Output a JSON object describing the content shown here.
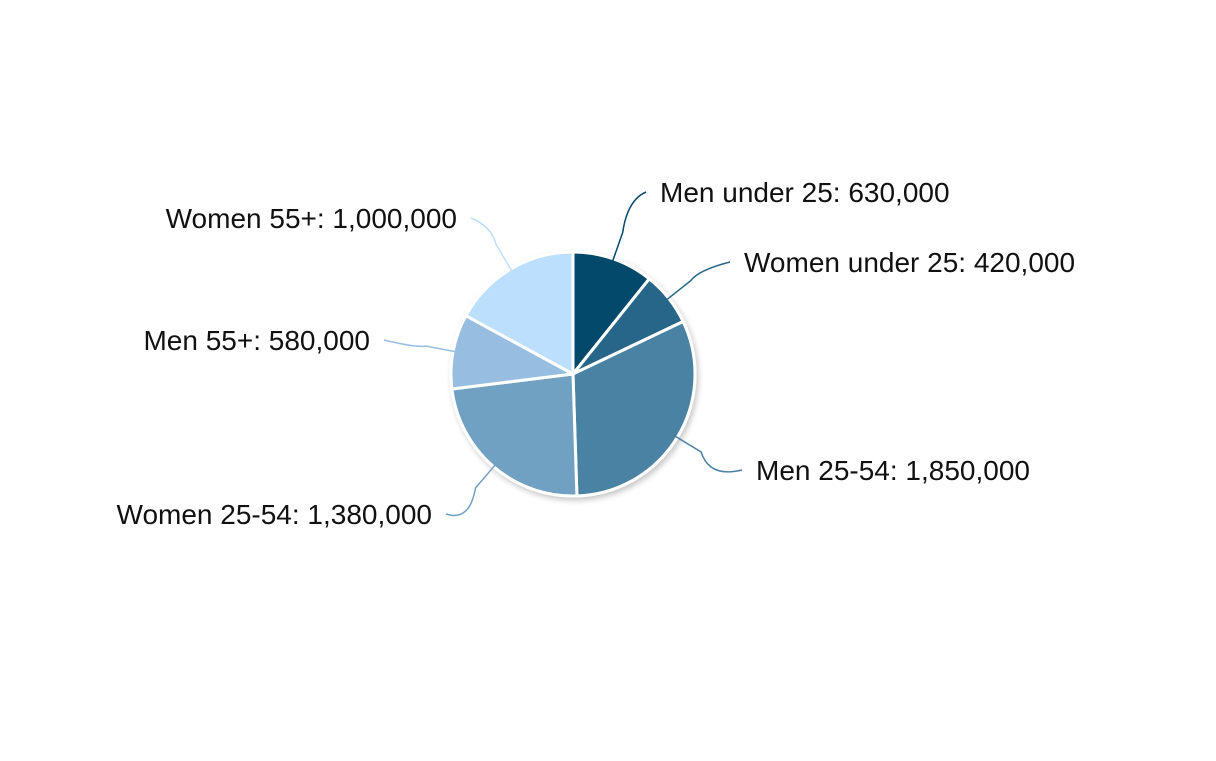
{
  "chart_data": {
    "type": "pie",
    "slices": [
      {
        "label": "Men under 25",
        "value": 630000,
        "display": "Men under 25: 630,000",
        "color": "#02496B"
      },
      {
        "label": "Women under 25",
        "value": 420000,
        "display": "Women under 25: 420,000",
        "color": "#276688"
      },
      {
        "label": "Men 25-54",
        "value": 1850000,
        "display": "Men 25-54: 1,850,000",
        "color": "#4A82A4"
      },
      {
        "label": "Women 25-54",
        "value": 1380000,
        "display": "Women 25-54: 1,380,000",
        "color": "#71A1C2"
      },
      {
        "label": "Men 55+",
        "value": 580000,
        "display": "Men 55+: 580,000",
        "color": "#97BEE0"
      },
      {
        "label": "Women 55+",
        "value": 1000000,
        "display": "Women 55+: 1,000,000",
        "color": "#BCDFFE"
      }
    ],
    "start_angle": "top (12 o'clock)",
    "direction": "clockwise",
    "legend": "none",
    "data_labels": "outside with connector lines"
  }
}
